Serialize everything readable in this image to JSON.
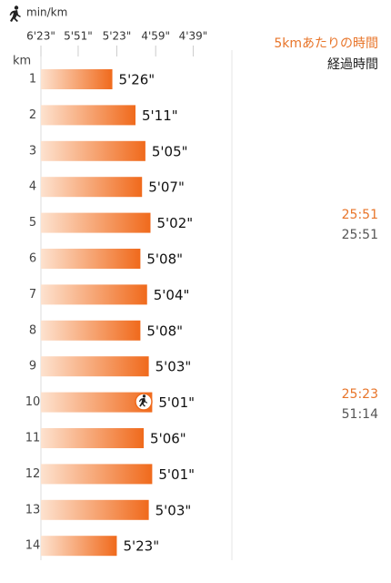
{
  "chart_data": {
    "type": "bar",
    "orientation": "horizontal",
    "scale": "reciprocal",
    "xlabel": "min/km",
    "ylabel": "km",
    "split_header": "5kmあたりの時間",
    "elapsed_header": "経過時間",
    "categories": [
      "1",
      "2",
      "3",
      "4",
      "5",
      "6",
      "7",
      "8",
      "9",
      "10",
      "11",
      "12",
      "13",
      "14"
    ],
    "values": [
      326,
      311,
      305,
      307,
      302,
      308,
      304,
      308,
      303,
      301,
      306,
      301,
      303,
      323
    ],
    "value_labels": [
      "5'26\"",
      "5'11\"",
      "5'05\"",
      "5'07\"",
      "5'02\"",
      "5'08\"",
      "5'04\"",
      "5'08\"",
      "5'03\"",
      "5'01\"",
      "5'06\"",
      "5'01\"",
      "5'03\"",
      "5'23\""
    ],
    "xlim": [
      383,
      261
    ],
    "xticks": [
      {
        "value": 383,
        "label": "6'23\""
      },
      {
        "value": 351,
        "label": "5'51\""
      },
      {
        "value": 323,
        "label": "5'23\""
      },
      {
        "value": 299,
        "label": "4'59\""
      },
      {
        "value": 279,
        "label": "4'39\""
      }
    ],
    "splits": [
      {
        "split": "25:51",
        "elapsed": "25:51"
      },
      {
        "split": "25:23",
        "elapsed": "51:14"
      }
    ],
    "color": "#f06a1c"
  }
}
